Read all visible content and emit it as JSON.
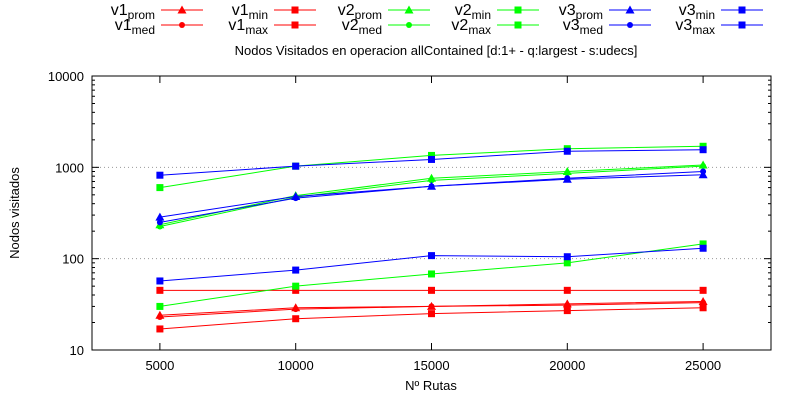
{
  "chart_data": {
    "type": "line",
    "title": "Nodos Visitados en operacion allContained [d:1+ - q:largest - s:udecs]",
    "xlabel": "Nº Rutas",
    "ylabel": "Nodos visitados",
    "x": [
      5000,
      10000,
      15000,
      20000,
      25000
    ],
    "x_ticks": [
      5000,
      10000,
      15000,
      20000,
      25000
    ],
    "x_tick_labels": [
      "5000",
      "10000",
      "15000",
      "20000",
      "25000"
    ],
    "xlim": [
      2500,
      27500
    ],
    "y_scale": "log",
    "ylim": [
      10,
      10000
    ],
    "y_ticks": [
      10,
      100,
      1000,
      10000
    ],
    "y_tick_labels": [
      "10",
      "100",
      "1000",
      "10000"
    ],
    "grid": "horizontal dotted at 100 and 1000",
    "legend_position": "top",
    "series": [
      {
        "name": "v1_prom",
        "label_main": "v1",
        "label_sub": "prom",
        "color": "#ff0000",
        "marker": "triangle",
        "values": [
          24,
          29,
          30,
          32,
          34
        ]
      },
      {
        "name": "v1_med",
        "label_main": "v1",
        "label_sub": "med",
        "color": "#ff0000",
        "marker": "dot",
        "values": [
          23,
          28,
          30,
          31,
          33
        ]
      },
      {
        "name": "v1_min",
        "label_main": "v1",
        "label_sub": "min",
        "color": "#ff0000",
        "marker": "square",
        "values": [
          17,
          22,
          25,
          27,
          29
        ]
      },
      {
        "name": "v1_max",
        "label_main": "v1",
        "label_sub": "max",
        "color": "#ff0000",
        "marker": "square",
        "values": [
          45,
          45,
          45,
          45,
          45
        ]
      },
      {
        "name": "v2_prom",
        "label_main": "v2",
        "label_sub": "prom",
        "color": "#00ff00",
        "marker": "triangle",
        "values": [
          235,
          490,
          760,
          900,
          1060
        ]
      },
      {
        "name": "v2_med",
        "label_main": "v2",
        "label_sub": "med",
        "color": "#00ff00",
        "marker": "dot",
        "values": [
          225,
          470,
          720,
          860,
          1030
        ]
      },
      {
        "name": "v2_min",
        "label_main": "v2",
        "label_sub": "min",
        "color": "#00ff00",
        "marker": "square",
        "values": [
          30,
          50,
          68,
          90,
          145
        ]
      },
      {
        "name": "v2_max",
        "label_main": "v2",
        "label_sub": "max",
        "color": "#00ff00",
        "marker": "square",
        "values": [
          600,
          1030,
          1350,
          1600,
          1700
        ]
      },
      {
        "name": "v3_prom",
        "label_main": "v3",
        "label_sub": "prom",
        "color": "#0000ff",
        "marker": "triangle",
        "values": [
          285,
          480,
          620,
          740,
          830
        ]
      },
      {
        "name": "v3_med",
        "label_main": "v3",
        "label_sub": "med",
        "color": "#0000ff",
        "marker": "dot",
        "values": [
          250,
          460,
          620,
          760,
          900
        ]
      },
      {
        "name": "v3_min",
        "label_main": "v3",
        "label_sub": "min",
        "color": "#0000ff",
        "marker": "square",
        "values": [
          57,
          75,
          108,
          105,
          130
        ]
      },
      {
        "name": "v3_max",
        "label_main": "v3",
        "label_sub": "max",
        "color": "#0000ff",
        "marker": "square",
        "values": [
          820,
          1030,
          1220,
          1500,
          1560
        ]
      }
    ]
  }
}
